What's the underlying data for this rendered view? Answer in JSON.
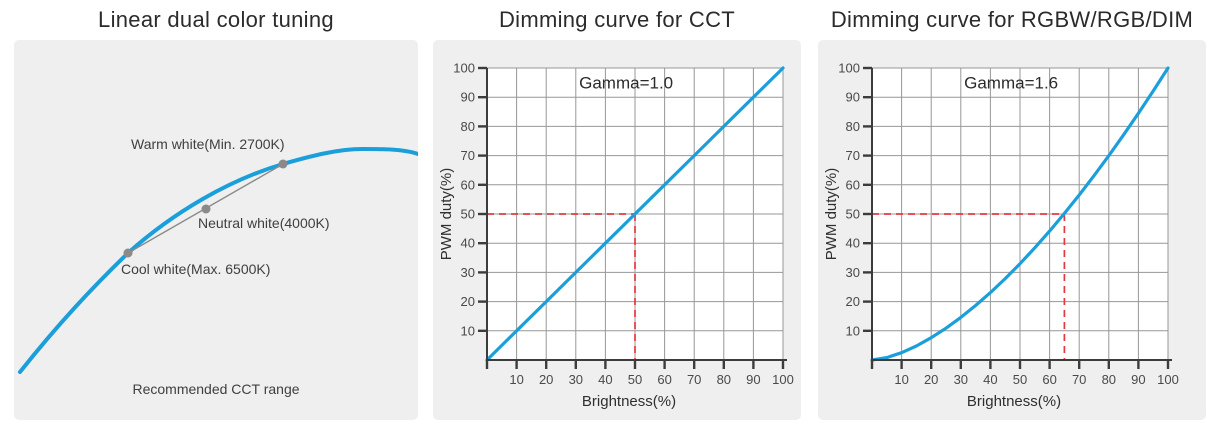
{
  "colors": {
    "curve_blue": "#1b9fdb",
    "reference_red": "#e0393f",
    "grid_gray": "#979797",
    "axis_dark": "#3c3c3c",
    "panel_background": "#efefef",
    "marker_gray": "#8a8a8a"
  },
  "chart_data": [
    {
      "type": "line",
      "id": "linear-dual-color-tuning",
      "title": "Linear dual color tuning",
      "caption": "Recommended CCT range",
      "description": "CCT locus curve with a straight linear-tuning chord joining the cool and warm endpoints; neutral point sits on the chord",
      "points": [
        {
          "label": "Cool white(Max. 6500K)",
          "cct_k": 6500,
          "role": "cool-endpoint"
        },
        {
          "label": "Neutral white(4000K)",
          "cct_k": 4000,
          "role": "neutral-midpoint"
        },
        {
          "label": "Warm white(Min. 2700K)",
          "cct_k": 2700,
          "role": "warm-endpoint"
        }
      ]
    },
    {
      "type": "line",
      "id": "dimming-curve-cct",
      "title": "Dimming curve for CCT",
      "annotation": "Gamma=1.0",
      "gamma": 1.0,
      "xlabel": "Brightness(%)",
      "ylabel": "PWM duty(%)",
      "xlim": [
        0,
        100
      ],
      "ylim": [
        0,
        100
      ],
      "xticks": [
        10,
        20,
        30,
        40,
        50,
        60,
        70,
        80,
        90,
        100
      ],
      "yticks": [
        10,
        20,
        30,
        40,
        50,
        60,
        70,
        80,
        90,
        100
      ],
      "grid": true,
      "line_color": "#1b9fdb",
      "reference_color": "#e0393f",
      "dashed_reference": {
        "brightness": 50,
        "pwm_duty": 50
      },
      "series": [
        {
          "name": "PWM duty",
          "x": [
            0,
            10,
            20,
            30,
            40,
            50,
            60,
            70,
            80,
            90,
            100
          ],
          "y": [
            0,
            10,
            20,
            30,
            40,
            50,
            60,
            70,
            80,
            90,
            100
          ]
        }
      ]
    },
    {
      "type": "line",
      "id": "dimming-curve-rgbw",
      "title": "Dimming curve for RGBW/RGB/DIM",
      "annotation": "Gamma=1.6",
      "gamma": 1.6,
      "xlabel": "Brightness(%)",
      "ylabel": "PWM duty(%)",
      "xlim": [
        0,
        100
      ],
      "ylim": [
        0,
        100
      ],
      "xticks": [
        10,
        20,
        30,
        40,
        50,
        60,
        70,
        80,
        90,
        100
      ],
      "yticks": [
        10,
        20,
        30,
        40,
        50,
        60,
        70,
        80,
        90,
        100
      ],
      "grid": true,
      "line_color": "#1b9fdb",
      "reference_color": "#e0393f",
      "dashed_reference": {
        "brightness": 65,
        "pwm_duty": 50
      },
      "series": [
        {
          "name": "PWM duty",
          "x": [
            0,
            5,
            10,
            15,
            20,
            25,
            30,
            35,
            40,
            45,
            50,
            55,
            60,
            65,
            70,
            75,
            80,
            85,
            90,
            95,
            100
          ],
          "y": [
            0,
            0.83,
            2.51,
            4.81,
            7.62,
            10.88,
            14.58,
            18.65,
            23.09,
            27.87,
            32.99,
            38.42,
            44.16,
            50.19,
            56.51,
            63.11,
            69.98,
            77.11,
            84.49,
            92.12,
            100
          ]
        }
      ]
    }
  ]
}
